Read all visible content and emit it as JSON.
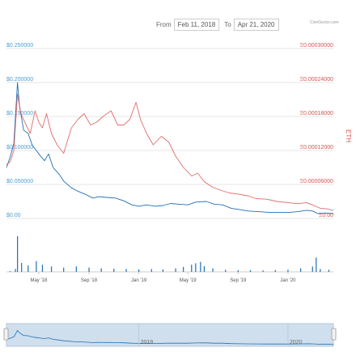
{
  "range": {
    "from_label": "From",
    "from_date": "Feb 11, 2018",
    "to_label": "To",
    "to_date": "Apr 21, 2020"
  },
  "credit": "CoinGecko.com",
  "colors": {
    "usd_line": "#1f6fb5",
    "eth_line": "#d9534f",
    "usd_axis": "#4a9fd5",
    "eth_axis": "#d9534f",
    "volume": "#1f6fb5"
  },
  "chart_data": {
    "type": "line",
    "y_left": {
      "ticks": [
        "$0.250000",
        "$0.200000",
        "$0.150000",
        "$0.100000",
        "$0.050000",
        "$0.00"
      ],
      "range": [
        0,
        0.25
      ]
    },
    "y_right": {
      "label": "ETH",
      "ticks": [
        "Ξ0.00030000",
        "Ξ0.00024000",
        "Ξ0.00018000",
        "Ξ0.00012000",
        "Ξ0.00006000",
        "Ξ0.00"
      ],
      "range": [
        0,
        0.0003
      ]
    },
    "x_ticks": [
      "May '18",
      "Sep '18",
      "Jan '19",
      "May '19",
      "Sep '19",
      "Jan '20"
    ],
    "navigator_labels": [
      "2019",
      "2020"
    ],
    "series": [
      {
        "axis": "left",
        "points": [
          [
            "2018-02-11",
            0.075
          ],
          [
            "2018-02-20",
            0.09
          ],
          [
            "2018-03-01",
            0.11
          ],
          [
            "2018-03-10",
            0.2
          ],
          [
            "2018-03-15",
            0.165
          ],
          [
            "2018-03-25",
            0.13
          ],
          [
            "2018-04-05",
            0.125
          ],
          [
            "2018-04-15",
            0.108
          ],
          [
            "2018-04-25",
            0.1
          ],
          [
            "2018-05-05",
            0.092
          ],
          [
            "2018-05-15",
            0.085
          ],
          [
            "2018-05-25",
            0.095
          ],
          [
            "2018-06-05",
            0.075
          ],
          [
            "2018-06-20",
            0.065
          ],
          [
            "2018-07-01",
            0.055
          ],
          [
            "2018-07-20",
            0.045
          ],
          [
            "2018-08-05",
            0.04
          ],
          [
            "2018-08-25",
            0.035
          ],
          [
            "2018-09-10",
            0.03
          ],
          [
            "2018-09-25",
            0.032
          ],
          [
            "2018-10-15",
            0.031
          ],
          [
            "2018-11-05",
            0.03
          ],
          [
            "2018-11-25",
            0.026
          ],
          [
            "2018-12-15",
            0.02
          ],
          [
            "2019-01-01",
            0.018
          ],
          [
            "2019-01-20",
            0.02
          ],
          [
            "2019-02-10",
            0.018
          ],
          [
            "2019-03-01",
            0.019
          ],
          [
            "2019-03-20",
            0.022
          ],
          [
            "2019-04-10",
            0.021
          ],
          [
            "2019-05-01",
            0.02
          ],
          [
            "2019-05-20",
            0.024
          ],
          [
            "2019-06-15",
            0.025
          ],
          [
            "2019-07-05",
            0.021
          ],
          [
            "2019-07-25",
            0.02
          ],
          [
            "2019-08-15",
            0.015
          ],
          [
            "2019-09-05",
            0.013
          ],
          [
            "2019-09-25",
            0.011
          ],
          [
            "2019-10-20",
            0.01
          ],
          [
            "2019-11-15",
            0.009
          ],
          [
            "2019-12-10",
            0.009
          ],
          [
            "2020-01-05",
            0.009
          ],
          [
            "2020-01-25",
            0.01
          ],
          [
            "2020-02-15",
            0.012
          ],
          [
            "2020-03-01",
            0.011
          ],
          [
            "2020-03-15",
            0.007
          ],
          [
            "2020-04-01",
            0.008
          ],
          [
            "2020-04-21",
            0.007
          ]
        ]
      },
      {
        "axis": "right",
        "points": [
          [
            "2018-02-11",
            9.5e-05
          ],
          [
            "2018-02-20",
            0.0001
          ],
          [
            "2018-03-01",
            0.00012
          ],
          [
            "2018-03-10",
            0.00022
          ],
          [
            "2018-03-18",
            0.000185
          ],
          [
            "2018-03-28",
            0.00017
          ],
          [
            "2018-04-10",
            0.00015
          ],
          [
            "2018-04-22",
            0.00019
          ],
          [
            "2018-05-01",
            0.00017
          ],
          [
            "2018-05-10",
            0.00016
          ],
          [
            "2018-05-20",
            0.000185
          ],
          [
            "2018-06-01",
            0.00015
          ],
          [
            "2018-06-15",
            0.00013
          ],
          [
            "2018-07-01",
            0.000115
          ],
          [
            "2018-07-20",
            0.00016
          ],
          [
            "2018-08-05",
            0.000175
          ],
          [
            "2018-08-20",
            0.000185
          ],
          [
            "2018-09-05",
            0.000165
          ],
          [
            "2018-09-20",
            0.00017
          ],
          [
            "2018-10-05",
            0.00018
          ],
          [
            "2018-10-25",
            0.00019
          ],
          [
            "2018-11-10",
            0.000165
          ],
          [
            "2018-11-25",
            0.000165
          ],
          [
            "2018-12-10",
            0.000175
          ],
          [
            "2018-12-25",
            0.000205
          ],
          [
            "2019-01-05",
            0.000175
          ],
          [
            "2019-01-20",
            0.00015
          ],
          [
            "2019-02-05",
            0.00013
          ],
          [
            "2019-02-25",
            0.000145
          ],
          [
            "2019-03-15",
            0.000135
          ],
          [
            "2019-04-01",
            0.00011
          ],
          [
            "2019-04-20",
            9e-05
          ],
          [
            "2019-05-10",
            7.5e-05
          ],
          [
            "2019-05-25",
            8e-05
          ],
          [
            "2019-06-10",
            6.5e-05
          ],
          [
            "2019-07-01",
            5.5e-05
          ],
          [
            "2019-07-20",
            5e-05
          ],
          [
            "2019-08-10",
            4.5e-05
          ],
          [
            "2019-09-01",
            4.3e-05
          ],
          [
            "2019-09-25",
            4e-05
          ],
          [
            "2019-10-15",
            3.5e-05
          ],
          [
            "2019-11-10",
            3.4e-05
          ],
          [
            "2019-12-05",
            3e-05
          ],
          [
            "2020-01-01",
            2.8e-05
          ],
          [
            "2020-01-25",
            2.6e-05
          ],
          [
            "2020-02-15",
            2.8e-05
          ],
          [
            "2020-03-01",
            2.4e-05
          ],
          [
            "2020-03-20",
            1.8e-05
          ],
          [
            "2020-04-05",
            1.7e-05
          ],
          [
            "2020-04-21",
            1.4e-05
          ]
        ]
      }
    ],
    "volume": [
      [
        "2018-02-20",
        0.02
      ],
      [
        "2018-03-05",
        0.08
      ],
      [
        "2018-03-10",
        1.0
      ],
      [
        "2018-03-20",
        0.25
      ],
      [
        "2018-04-05",
        0.18
      ],
      [
        "2018-04-25",
        0.3
      ],
      [
        "2018-05-10",
        0.2
      ],
      [
        "2018-06-01",
        0.15
      ],
      [
        "2018-07-01",
        0.12
      ],
      [
        "2018-08-01",
        0.15
      ],
      [
        "2018-09-01",
        0.12
      ],
      [
        "2018-10-01",
        0.1
      ],
      [
        "2018-11-01",
        0.09
      ],
      [
        "2018-12-01",
        0.08
      ],
      [
        "2019-01-01",
        0.07
      ],
      [
        "2019-02-01",
        0.08
      ],
      [
        "2019-03-01",
        0.07
      ],
      [
        "2019-04-01",
        0.1
      ],
      [
        "2019-04-20",
        0.14
      ],
      [
        "2019-05-10",
        0.2
      ],
      [
        "2019-05-20",
        0.24
      ],
      [
        "2019-06-01",
        0.28
      ],
      [
        "2019-06-10",
        0.16
      ],
      [
        "2019-07-01",
        0.1
      ],
      [
        "2019-08-01",
        0.06
      ],
      [
        "2019-09-01",
        0.05
      ],
      [
        "2019-10-01",
        0.05
      ],
      [
        "2019-11-01",
        0.04
      ],
      [
        "2019-12-01",
        0.05
      ],
      [
        "2020-01-01",
        0.06
      ],
      [
        "2020-02-01",
        0.1
      ],
      [
        "2020-03-01",
        0.15
      ],
      [
        "2020-03-10",
        0.4
      ],
      [
        "2020-03-20",
        0.08
      ],
      [
        "2020-04-10",
        0.06
      ]
    ]
  }
}
